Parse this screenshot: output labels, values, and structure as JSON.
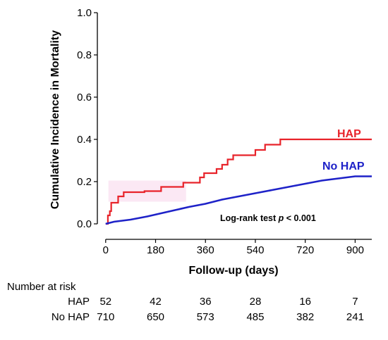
{
  "chart_data": {
    "type": "line",
    "xlabel": "Follow-up (days)",
    "ylabel": "Cumulative Incidence in Mortality",
    "xlim": [
      -30,
      960
    ],
    "ylim": [
      0,
      1.0
    ],
    "x_ticks": [
      0,
      180,
      360,
      540,
      720,
      900
    ],
    "y_ticks": [
      0.0,
      0.2,
      0.4,
      0.6,
      0.8,
      1.0
    ],
    "y_tick_labels": [
      "0.0",
      "0.2",
      "0.4",
      "0.6",
      "0.8",
      "1.0"
    ],
    "grid": false,
    "annotation": {
      "prefix": "Log-rank test ",
      "italic": "p",
      "suffix": " < 0.001"
    },
    "series": [
      {
        "name": "HAP",
        "color": "#e8232a",
        "step": true,
        "points": [
          [
            0,
            0
          ],
          [
            8,
            0.04
          ],
          [
            15,
            0.06
          ],
          [
            20,
            0.1
          ],
          [
            45,
            0.13
          ],
          [
            65,
            0.15
          ],
          [
            140,
            0.155
          ],
          [
            200,
            0.175
          ],
          [
            280,
            0.195
          ],
          [
            340,
            0.22
          ],
          [
            355,
            0.24
          ],
          [
            400,
            0.26
          ],
          [
            420,
            0.28
          ],
          [
            440,
            0.305
          ],
          [
            460,
            0.325
          ],
          [
            540,
            0.35
          ],
          [
            575,
            0.375
          ],
          [
            630,
            0.4
          ],
          [
            960,
            0.4
          ]
        ]
      },
      {
        "name": "No HAP",
        "color": "#1e22c8",
        "step": false,
        "points": [
          [
            0,
            0
          ],
          [
            30,
            0.01
          ],
          [
            90,
            0.02
          ],
          [
            150,
            0.035
          ],
          [
            200,
            0.05
          ],
          [
            250,
            0.065
          ],
          [
            300,
            0.08
          ],
          [
            360,
            0.095
          ],
          [
            420,
            0.115
          ],
          [
            480,
            0.13
          ],
          [
            540,
            0.145
          ],
          [
            600,
            0.16
          ],
          [
            660,
            0.175
          ],
          [
            720,
            0.19
          ],
          [
            780,
            0.205
          ],
          [
            840,
            0.215
          ],
          [
            900,
            0.225
          ],
          [
            960,
            0.225
          ]
        ]
      }
    ],
    "risk_table": {
      "title": "Number at risk",
      "times": [
        0,
        180,
        360,
        540,
        720,
        900
      ],
      "rows": [
        {
          "label": "HAP",
          "values": [
            "52",
            "42",
            "36",
            "28",
            "16",
            "7"
          ]
        },
        {
          "label": "No HAP",
          "values": [
            "710",
            "650",
            "573",
            "485",
            "382",
            "241"
          ]
        }
      ]
    }
  }
}
